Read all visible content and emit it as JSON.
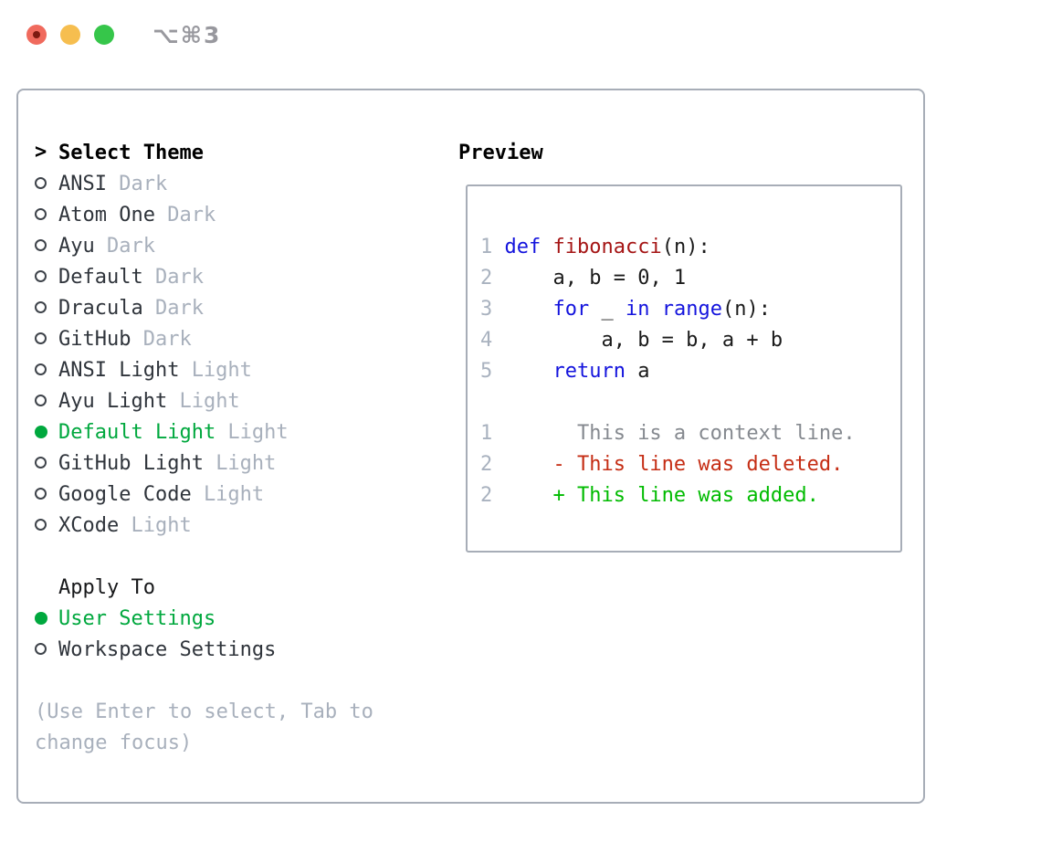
{
  "window": {
    "title": "⌥⌘3"
  },
  "theme_picker": {
    "prompt": ">",
    "title": "Select Theme",
    "items": [
      {
        "name": "ANSI",
        "tag": "Dark",
        "selected": false
      },
      {
        "name": "Atom One",
        "tag": "Dark",
        "selected": false
      },
      {
        "name": "Ayu",
        "tag": "Dark",
        "selected": false
      },
      {
        "name": "Default",
        "tag": "Dark",
        "selected": false
      },
      {
        "name": "Dracula",
        "tag": "Dark",
        "selected": false
      },
      {
        "name": "GitHub",
        "tag": "Dark",
        "selected": false
      },
      {
        "name": "ANSI Light",
        "tag": "Light",
        "selected": false
      },
      {
        "name": "Ayu Light",
        "tag": "Light",
        "selected": false
      },
      {
        "name": "Default Light",
        "tag": "Light",
        "selected": true
      },
      {
        "name": "GitHub Light",
        "tag": "Light",
        "selected": false
      },
      {
        "name": "Google Code",
        "tag": "Light",
        "selected": false
      },
      {
        "name": "XCode",
        "tag": "Light",
        "selected": false
      }
    ]
  },
  "apply_to": {
    "title": "Apply To",
    "options": [
      {
        "label": "User Settings",
        "selected": true
      },
      {
        "label": "Workspace Settings",
        "selected": false
      }
    ]
  },
  "hint": {
    "line1": "(Use Enter to select, Tab to",
    "line2": "change focus)"
  },
  "preview": {
    "title": "Preview",
    "code_lines": [
      {
        "num": "1",
        "tokens": [
          {
            "t": "def",
            "c": "kw"
          },
          {
            "t": " ",
            "c": "plain"
          },
          {
            "t": "fibonacci",
            "c": "fn"
          },
          {
            "t": "(n):",
            "c": "plain"
          }
        ]
      },
      {
        "num": "2",
        "tokens": [
          {
            "t": "    a, b = 0, 1",
            "c": "plain"
          }
        ]
      },
      {
        "num": "3",
        "tokens": [
          {
            "t": "    ",
            "c": "plain"
          },
          {
            "t": "for",
            "c": "kw"
          },
          {
            "t": " _ ",
            "c": "plain"
          },
          {
            "t": "in",
            "c": "kw"
          },
          {
            "t": " ",
            "c": "plain"
          },
          {
            "t": "range",
            "c": "kw"
          },
          {
            "t": "(n):",
            "c": "plain"
          }
        ]
      },
      {
        "num": "4",
        "tokens": [
          {
            "t": "        a, b = b, a + b",
            "c": "plain"
          }
        ]
      },
      {
        "num": "5",
        "tokens": [
          {
            "t": "    ",
            "c": "plain"
          },
          {
            "t": "return",
            "c": "kw"
          },
          {
            "t": " a",
            "c": "plain"
          }
        ]
      }
    ],
    "diff_lines": [
      {
        "num": "1",
        "sign": " ",
        "text": "This is a context line.",
        "kind": "context"
      },
      {
        "num": "2",
        "sign": "-",
        "text": "This line was deleted.",
        "kind": "deleted"
      },
      {
        "num": "2",
        "sign": "+",
        "text": "This line was added.",
        "kind": "added"
      }
    ]
  },
  "colors": {
    "accent_green": "#00a83e",
    "added_green": "#00bb00",
    "deleted_red": "#c52d14",
    "context_gray": "#85898f",
    "keyword_blue": "#1414dd",
    "function_red": "#a51515",
    "muted_gray": "#a8b0bc",
    "border_gray": "#a7adb7",
    "traffic_red": "#f06a5d",
    "traffic_yellow": "#f6be4f",
    "traffic_green": "#36c64a"
  }
}
